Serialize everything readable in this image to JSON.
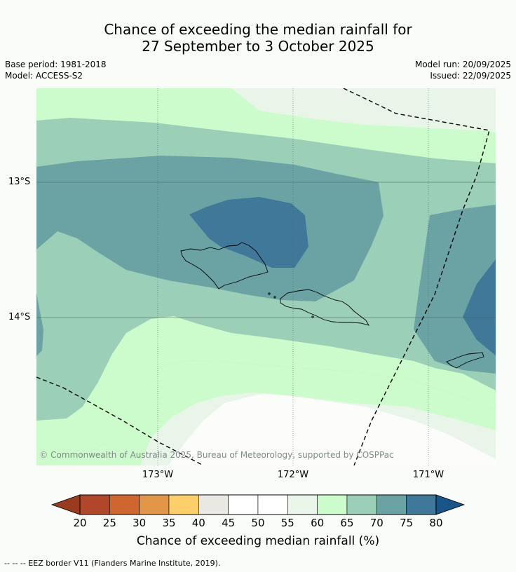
{
  "title": {
    "line1": "Chance of exceeding the median rainfall for",
    "line2": "27 September to 3 October 2025"
  },
  "meta_left": {
    "base_period": "Base period: 1981-2018",
    "model": "Model: ACCESS-S2"
  },
  "meta_right": {
    "model_run": "Model run: 20/09/2025",
    "issued": "Issued: 22/09/2025"
  },
  "map": {
    "lat_labels": [
      "13°S",
      "14°S"
    ],
    "lon_labels": [
      "173°W",
      "172°W",
      "171°W"
    ],
    "copyright": "© Commonwealth of Australia 2025, Bureau of Meteorology, supported by COSPPac",
    "colors": {
      "band_45_55": "#fcfdfb",
      "band_55_60": "#e9f5e8",
      "band_60_65": "#ccfccc",
      "band_65_70": "#9ccfb7",
      "band_70_75": "#6ba3a5",
      "band_75_80": "#3f7899"
    }
  },
  "colorbar": {
    "ticks": [
      "20",
      "25",
      "30",
      "35",
      "40",
      "45",
      "50",
      "55",
      "60",
      "65",
      "70",
      "75",
      "80"
    ],
    "colors": [
      "#b0472a",
      "#d0662f",
      "#e29648",
      "#fdcf6a",
      "#eae8e3",
      "#ffffff",
      "#ffffff",
      "#e9f5e8",
      "#ccfccc",
      "#9ccfb7",
      "#6ba3a5",
      "#3f7899"
    ],
    "under_color": "#9a3a1f",
    "over_color": "#185588",
    "label": "Chance of exceeding median rainfall (%)"
  },
  "footer": {
    "eez_note": "--  --  -- EEZ border V11 (Flanders Marine Institute, 2019)."
  }
}
